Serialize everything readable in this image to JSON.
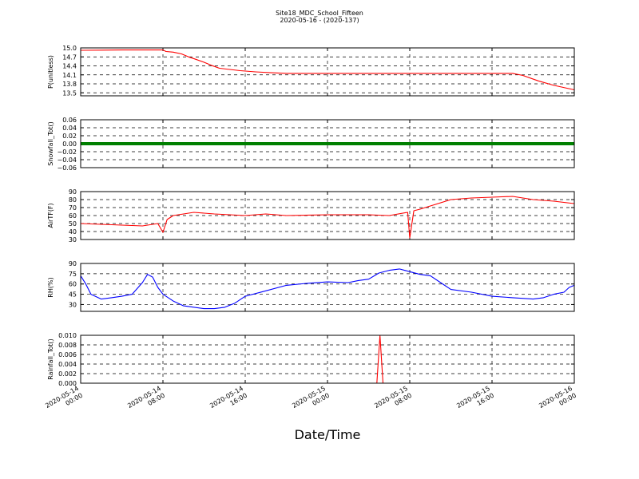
{
  "title": "Site18_MDC_School_Fifteen",
  "subtitle": "2020-05-16 - (2020-137)",
  "xlabel": "Date/Time",
  "chart_data": {
    "type": "line",
    "shared_x": {
      "ticks": [
        {
          "line1": "2020-05-14",
          "line2": "00:00"
        },
        {
          "line1": "2020-05-14",
          "line2": "08:00"
        },
        {
          "line1": "2020-05-14",
          "line2": "16:00"
        },
        {
          "line1": "2020-05-15",
          "line2": "00:00"
        },
        {
          "line1": "2020-05-15",
          "line2": "08:00"
        },
        {
          "line1": "2020-05-15",
          "line2": "16:00"
        },
        {
          "line1": "2020-05-16",
          "line2": "00:00"
        }
      ],
      "range_hours": [
        0,
        48
      ],
      "tick_step_hours": 8
    },
    "panels": [
      {
        "ylabel": "P(unitless)",
        "color": "#ff0000",
        "ylim": [
          13.4,
          15.0
        ],
        "yticks": [
          "15.0",
          "14.7",
          "14.4",
          "14.1",
          "13.8",
          "13.5"
        ],
        "ytick_values": [
          15.0,
          14.7,
          14.4,
          14.1,
          13.8,
          13.5
        ],
        "hours": [
          0,
          4,
          8,
          8.3,
          9,
          9.8,
          10.5,
          11.2,
          12,
          12.7,
          13.5,
          14.5,
          15.5,
          17,
          18.5,
          20,
          26,
          34,
          42,
          43,
          44.5,
          46,
          48
        ],
        "values": [
          14.92,
          14.93,
          14.93,
          14.88,
          14.86,
          14.8,
          14.7,
          14.62,
          14.52,
          14.42,
          14.32,
          14.28,
          14.24,
          14.2,
          14.17,
          14.15,
          14.15,
          14.15,
          14.15,
          14.08,
          13.9,
          13.75,
          13.6
        ]
      },
      {
        "ylabel": "Snowfall_Tot()",
        "color": "#008000",
        "ylim": [
          -0.06,
          0.06
        ],
        "yticks": [
          "0.06",
          "0.04",
          "0.02",
          "0.00",
          "−0.02",
          "−0.04",
          "−0.06"
        ],
        "ytick_values": [
          0.06,
          0.04,
          0.02,
          0.0,
          -0.02,
          -0.04,
          -0.06
        ],
        "hours": [
          0,
          48
        ],
        "values": [
          0.0,
          0.0
        ]
      },
      {
        "ylabel": "AirTF(F)",
        "color": "#ff0000",
        "ylim": [
          30,
          90
        ],
        "yticks": [
          "90",
          "80",
          "70",
          "60",
          "50",
          "40",
          "30"
        ],
        "ytick_values": [
          90,
          80,
          70,
          60,
          50,
          40,
          30
        ],
        "hours": [
          0,
          2,
          4,
          6,
          7.5,
          8,
          8.4,
          9,
          10,
          11,
          13,
          16,
          18,
          20,
          24,
          28,
          30,
          31.8,
          32,
          32.4,
          33,
          34,
          36,
          38,
          40,
          42,
          43,
          44,
          46,
          48
        ],
        "values": [
          50,
          49,
          48,
          47,
          50,
          39,
          55,
          60,
          62,
          64,
          62,
          60,
          62,
          60,
          61,
          61,
          60,
          64,
          32,
          66,
          68,
          72,
          80,
          82,
          83,
          84,
          82,
          80,
          78,
          75
        ]
      },
      {
        "ylabel": "RH(%)",
        "color": "#0000ff",
        "ylim": [
          20,
          90
        ],
        "yticks": [
          "90",
          "75",
          "60",
          "45",
          "30"
        ],
        "ytick_values": [
          90,
          75,
          60,
          45,
          30
        ],
        "hours": [
          0,
          0.5,
          1,
          2,
          3,
          4,
          5,
          6,
          6.5,
          7,
          7.5,
          8,
          9,
          10,
          12,
          13,
          14,
          15,
          16,
          18,
          20,
          22,
          24,
          26,
          27,
          28,
          29,
          30,
          31,
          32,
          33,
          34,
          35,
          36,
          38,
          40,
          42,
          44,
          45,
          46,
          47,
          47.5,
          48
        ],
        "values": [
          72,
          60,
          45,
          38,
          40,
          42,
          45,
          62,
          74,
          70,
          55,
          45,
          35,
          28,
          24,
          24,
          26,
          32,
          42,
          50,
          58,
          61,
          63,
          62,
          65,
          67,
          76,
          80,
          82,
          78,
          74,
          72,
          62,
          52,
          48,
          42,
          40,
          38,
          40,
          45,
          48,
          55,
          58
        ]
      },
      {
        "ylabel": "Rainfall_Tot()",
        "color": "#ff0000",
        "ylim": [
          0,
          0.01
        ],
        "yticks": [
          "0.010",
          "0.008",
          "0.006",
          "0.004",
          "0.002",
          "0.000"
        ],
        "ytick_values": [
          0.01,
          0.008,
          0.006,
          0.004,
          0.002,
          0.0
        ],
        "hours": [
          0,
          28.8,
          29.1,
          29.4,
          48
        ],
        "values": [
          0,
          0,
          0.01,
          0,
          0
        ]
      }
    ]
  }
}
